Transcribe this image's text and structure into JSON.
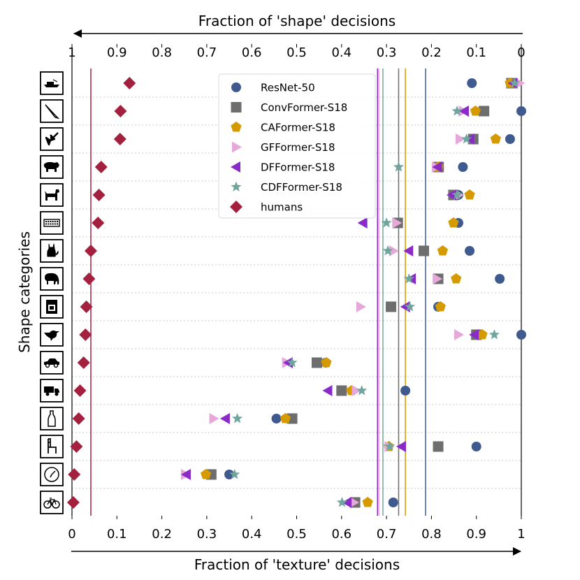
{
  "chart_data": {
    "type": "scatter",
    "title": "",
    "xlabel": "Fraction of 'texture' decisions",
    "x2label": "Fraction of 'shape' decisions",
    "ylabel": "Shape categories",
    "xlim": [
      0,
      1
    ],
    "x_ticks": [
      "0",
      "0.1",
      "0.2",
      "0.3",
      "0.4",
      "0.5",
      "0.6",
      "0.7",
      "0.8",
      "0.9",
      "1"
    ],
    "x2_ticks": [
      "1",
      "0.9",
      "0.8",
      "0.7",
      "0.6",
      "0.5",
      "0.4",
      "0.3",
      "0.2",
      "0.1",
      "0"
    ],
    "grid": "horizontal dotted",
    "legend_position": "top-center",
    "categories": [
      "boat",
      "knife",
      "airplane",
      "bear",
      "dog",
      "keyboard",
      "cat",
      "elephant",
      "oven",
      "bird",
      "car",
      "truck",
      "bottle",
      "chair",
      "clock",
      "bicycle"
    ],
    "category_icons": [
      "boat-icon",
      "knife-icon",
      "airplane-icon",
      "bear-icon",
      "dog-icon",
      "keyboard-icon",
      "cat-icon",
      "elephant-icon",
      "oven-icon",
      "bird-icon",
      "car-icon",
      "truck-icon",
      "bottle-icon",
      "chair-icon",
      "clock-icon",
      "bicycle-icon"
    ],
    "series": [
      {
        "name": "ResNet-50",
        "marker": "circle",
        "color": "#3f5a8e",
        "mean": 0.787,
        "values": [
          0.89,
          1.0,
          0.975,
          0.87,
          0.86,
          0.86,
          0.885,
          0.952,
          0.815,
          1.0,
          0.565,
          0.742,
          0.455,
          0.9,
          0.35,
          0.715
        ]
      },
      {
        "name": "ConvFormer-S18",
        "marker": "square",
        "color": "#6e6e6e",
        "mean": 0.727,
        "values": [
          0.978,
          0.917,
          0.893,
          0.816,
          0.849,
          0.725,
          0.783,
          0.815,
          0.71,
          0.9,
          0.545,
          0.6,
          0.49,
          0.815,
          0.31,
          0.63
        ]
      },
      {
        "name": "CAFormer-S18",
        "marker": "pentagon",
        "color": "#d49a00",
        "mean": 0.742,
        "values": [
          0.975,
          0.898,
          0.943,
          0.815,
          0.885,
          0.849,
          0.825,
          0.855,
          0.82,
          0.913,
          0.566,
          0.622,
          0.475,
          0.705,
          0.298,
          0.658
        ]
      },
      {
        "name": "GFFormer-S18",
        "marker": "triangle-right",
        "color": "#e6a8d8",
        "mean": 0.683,
        "values": [
          0.996,
          0.87,
          0.863,
          0.81,
          0.86,
          0.722,
          0.715,
          0.812,
          0.642,
          0.86,
          0.477,
          0.632,
          0.315,
          0.705,
          0.252,
          0.627
        ]
      },
      {
        "name": "DFFormer-S18",
        "marker": "triangle-left",
        "color": "#8a2bc8",
        "mean": 0.68,
        "values": [
          0.982,
          0.874,
          0.886,
          0.814,
          0.846,
          0.648,
          0.75,
          0.756,
          0.743,
          0.896,
          0.482,
          0.57,
          0.342,
          0.734,
          0.255,
          0.613
        ]
      },
      {
        "name": "CDFFormer-S18",
        "marker": "star",
        "color": "#6fa59c",
        "mean": 0.692,
        "values": [
          0.985,
          0.857,
          0.878,
          0.727,
          0.857,
          0.7,
          0.703,
          0.75,
          0.752,
          0.94,
          0.49,
          0.645,
          0.368,
          0.707,
          0.362,
          0.601
        ]
      },
      {
        "name": "humans",
        "marker": "diamond",
        "color": "#a3203f",
        "mean": 0.042,
        "values": [
          0.128,
          0.108,
          0.107,
          0.065,
          0.06,
          0.058,
          0.042,
          0.038,
          0.032,
          0.03,
          0.026,
          0.018,
          0.015,
          0.01,
          0.005,
          0.003
        ]
      }
    ]
  }
}
